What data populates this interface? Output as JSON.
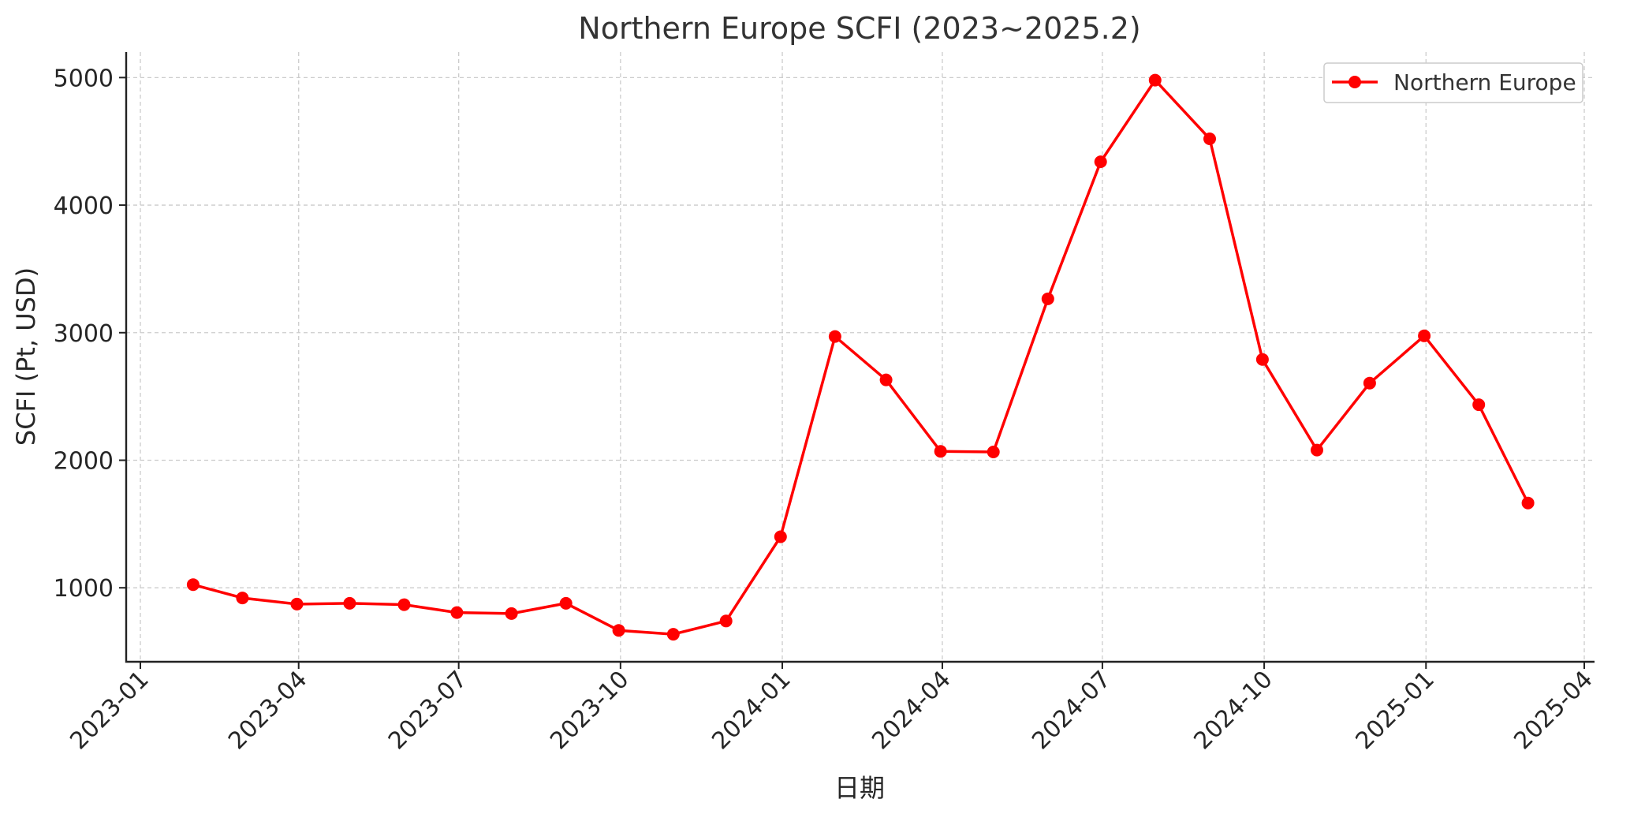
{
  "chart_data": {
    "type": "line",
    "title": "Northern Europe SCFI (2023~2025.2)",
    "xlabel": "日期",
    "ylabel": "SCFI (Pt, USD)",
    "x": [
      "2023-01-31",
      "2023-02-28",
      "2023-03-31",
      "2023-04-30",
      "2023-05-31",
      "2023-06-30",
      "2023-07-31",
      "2023-08-31",
      "2023-09-30",
      "2023-10-31",
      "2023-11-30",
      "2023-12-31",
      "2024-01-31",
      "2024-02-29",
      "2024-03-31",
      "2024-04-30",
      "2024-05-31",
      "2024-06-30",
      "2024-07-31",
      "2024-08-31",
      "2024-09-30",
      "2024-10-31",
      "2024-11-30",
      "2024-12-31",
      "2025-01-31",
      "2025-02-28"
    ],
    "series": [
      {
        "name": "Northern Europe",
        "color": "#ff0000",
        "values": [
          1025,
          920,
          872,
          878,
          868,
          806,
          798,
          878,
          666,
          636,
          740,
          1400,
          2970,
          2630,
          2070,
          2065,
          3265,
          4340,
          4980,
          4520,
          2790,
          2080,
          2605,
          2975,
          2435,
          1665
        ]
      }
    ],
    "x_ticks": [
      "2023-01",
      "2023-04",
      "2023-07",
      "2023-10",
      "2024-01",
      "2024-04",
      "2024-07",
      "2024-10",
      "2025-01",
      "2025-04"
    ],
    "y_ticks": [
      "1000",
      "2000",
      "3000",
      "4000",
      "5000"
    ],
    "xlim": [
      "2023-01-01",
      "2025-04-01"
    ],
    "ylim": [
      420,
      5200
    ],
    "grid": true,
    "legend": "top-right"
  }
}
